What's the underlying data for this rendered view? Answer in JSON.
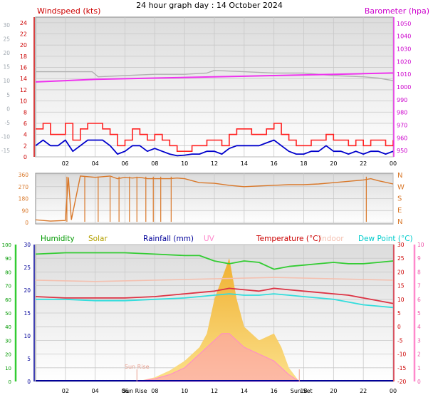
{
  "title": "24 hour graph day : 14 October 2024",
  "colors": {
    "windspeed": "#cc0000",
    "gust": "#ff2020",
    "wind_avg": "#0000cc",
    "barometer": "#ee33ee",
    "barometer_label": "#cc00cc",
    "baro_old": "#b0b0b0",
    "direction": "#d9782a",
    "humidity": "#33cc33",
    "humidity_label": "#009900",
    "solar": "#f5c242",
    "solar_label": "#b3a000",
    "rainfall": "#000099",
    "uv": "#ff88cc",
    "temperature": "#dd3344",
    "temperature_label": "#cc0000",
    "indoor": "#f4c0b0",
    "dewpoint": "#33dddd",
    "dewpoint_label": "#00cccc",
    "left_axis_grey": "#a0a8b0",
    "sun_marker": "#e8a090"
  },
  "chart_data": [
    {
      "type": "line",
      "panel": "wind-barometer",
      "title": "24 hour graph day : 14 October 2024",
      "xlabel": "",
      "x_ticks": [
        "02",
        "04",
        "06",
        "08",
        "10",
        "12",
        "14",
        "16",
        "18",
        "20",
        "22",
        "00"
      ],
      "y_left_label": "Windspeed (kts)",
      "y_left_ticks": [
        0,
        2,
        4,
        6,
        8,
        10,
        12,
        14,
        16,
        18,
        20,
        22,
        24
      ],
      "ylim_left": [
        0,
        25
      ],
      "y_far_left_ticks": [
        "30",
        "25",
        "20",
        "15",
        "10",
        "5",
        "0",
        "-5",
        "-10",
        "-15"
      ],
      "y_right_label": "Barometer (hpa)",
      "y_right_ticks": [
        950,
        960,
        970,
        980,
        990,
        1000,
        1010,
        1020,
        1030,
        1040,
        1050
      ],
      "ylim_right": [
        945,
        1055
      ],
      "series": [
        {
          "id": "gust",
          "x": [
            0,
            0.5,
            1,
            1.5,
            2,
            2.5,
            3,
            3.5,
            4,
            4.5,
            5,
            5.5,
            6,
            6.5,
            7,
            7.5,
            8,
            8.5,
            9,
            9.5,
            10,
            10.5,
            11,
            11.5,
            12,
            12.5,
            13,
            13.5,
            14,
            14.5,
            15,
            15.5,
            16,
            16.5,
            17,
            17.5,
            18,
            18.5,
            19,
            19.5,
            20,
            20.5,
            21,
            21.5,
            22,
            22.5,
            23,
            23.5,
            24
          ],
          "values": [
            5,
            6,
            4,
            4,
            6,
            3,
            5,
            6,
            6,
            5,
            4,
            2,
            3,
            5,
            4,
            3,
            4,
            3,
            2,
            1,
            1,
            2,
            2,
            3,
            3,
            2,
            4,
            5,
            5,
            4,
            4,
            5,
            6,
            4,
            3,
            2,
            2,
            3,
            3,
            4,
            3,
            3,
            2,
            3,
            2,
            3,
            3,
            2,
            3
          ]
        },
        {
          "id": "wind_avg",
          "x": [
            0,
            0.5,
            1,
            1.5,
            2,
            2.5,
            3,
            3.5,
            4,
            4.5,
            5,
            5.5,
            6,
            6.5,
            7,
            7.5,
            8,
            8.5,
            9,
            9.5,
            10,
            10.5,
            11,
            11.5,
            12,
            12.5,
            13,
            13.5,
            14,
            14.5,
            15,
            15.5,
            16,
            16.5,
            17,
            17.5,
            18,
            18.5,
            19,
            19.5,
            20,
            20.5,
            21,
            21.5,
            22,
            22.5,
            23,
            23.5,
            24
          ],
          "values": [
            2,
            3,
            2,
            2,
            3,
            1,
            2,
            3,
            3,
            3,
            2,
            0.5,
            1,
            2,
            2,
            1,
            1.5,
            1,
            0.5,
            0.2,
            0.3,
            0.5,
            0.5,
            1,
            1,
            0.5,
            1.5,
            2,
            2,
            2,
            2,
            2.5,
            3,
            2,
            1,
            0.5,
            0.5,
            1,
            1,
            2,
            1,
            1,
            0.5,
            1,
            0.5,
            1,
            1,
            0.5,
            1
          ]
        },
        {
          "id": "barometer",
          "x": [
            0,
            2,
            4,
            6,
            8,
            10,
            12,
            14,
            16,
            18,
            20,
            22,
            24
          ],
          "values": [
            1004,
            1005,
            1006,
            1006.5,
            1007,
            1007.5,
            1008,
            1008.5,
            1009,
            1009.5,
            1010,
            1010.5,
            1011
          ]
        },
        {
          "id": "baro_old",
          "x": [
            0,
            2,
            3.8,
            4.2,
            6,
            8,
            10,
            11.5,
            12,
            14,
            16,
            18,
            20,
            22,
            23,
            24
          ],
          "values": [
            1012,
            1012,
            1012,
            1008,
            1009,
            1010,
            1010,
            1011,
            1013,
            1012,
            1011,
            1011,
            1009,
            1008,
            1007,
            1005
          ]
        }
      ]
    },
    {
      "type": "line",
      "panel": "wind-direction",
      "y_left_ticks": [
        0,
        90,
        180,
        270,
        360
      ],
      "ylim": [
        0,
        360
      ],
      "y_right_labels": [
        "N",
        "W",
        "S",
        "E",
        "N"
      ],
      "series": [
        {
          "id": "direction",
          "x": [
            0,
            1,
            2,
            2.2,
            2.4,
            3,
            4,
            4.5,
            5,
            5.5,
            6,
            6.5,
            7,
            7.5,
            8,
            9,
            9.5,
            10,
            11,
            12,
            13,
            14,
            15,
            16,
            17,
            18,
            19,
            20,
            21,
            22,
            22.5,
            23,
            24
          ],
          "values": [
            20,
            10,
            15,
            340,
            20,
            350,
            340,
            345,
            350,
            330,
            340,
            335,
            340,
            330,
            330,
            330,
            335,
            330,
            300,
            295,
            280,
            270,
            275,
            280,
            285,
            285,
            290,
            300,
            310,
            320,
            330,
            315,
            290
          ]
        }
      ]
    },
    {
      "type": "line",
      "panel": "temperature-humidity",
      "x_ticks": [
        "02",
        "04",
        "06",
        "08",
        "10",
        "12",
        "14",
        "16",
        "18",
        "20",
        "22",
        "00"
      ],
      "markers": {
        "sunrise_label": "Sun Rise",
        "sunset_label": "Sun Set",
        "sunrise_marker_label": "Sun Rise",
        "sunrise_hour": 6.8,
        "sunset_hour": 17.7
      },
      "legend": [
        "Humidity",
        "Solar",
        "Rainfall (mm)",
        "UV",
        "Temperature (°C)",
        "Indoor",
        "Dew Point (°C)"
      ],
      "y_left_humidity_ticks": [
        0,
        10,
        20,
        30,
        40,
        50,
        60,
        70,
        80,
        90,
        100
      ],
      "y_left_rain_ticks": [
        0,
        5,
        10,
        15,
        20,
        25,
        30
      ],
      "y_right_ticks": [
        -20,
        -15,
        -10,
        -5,
        0,
        5,
        10,
        15,
        20,
        25,
        30
      ],
      "y_far_right_ticks": [
        0,
        1,
        2,
        3,
        4,
        5,
        6,
        7,
        8,
        9,
        10
      ],
      "ylim_right": [
        -20,
        30
      ],
      "series": [
        {
          "id": "humidity",
          "x": [
            0,
            2,
            4,
            6,
            8,
            10,
            11,
            12,
            13,
            14,
            15,
            16,
            17,
            18,
            19,
            20,
            21,
            22,
            23,
            24
          ],
          "values": [
            93,
            94,
            94,
            94,
            93,
            92,
            92,
            88,
            86,
            88,
            87,
            82,
            84,
            85,
            86,
            87,
            86,
            86,
            87,
            88
          ]
        },
        {
          "id": "temperature",
          "x": [
            0,
            2,
            4,
            6,
            8,
            10,
            11,
            12,
            13,
            14,
            15,
            16,
            17,
            18,
            19,
            20,
            21,
            22,
            23,
            24
          ],
          "values": [
            11,
            10.5,
            10.5,
            10.5,
            11,
            12,
            12.5,
            13,
            14,
            13.5,
            13,
            14,
            13.5,
            13,
            12.5,
            12,
            11.5,
            10.5,
            9.5,
            8.5
          ]
        },
        {
          "id": "dewpoint",
          "x": [
            0,
            2,
            4,
            6,
            8,
            10,
            11,
            12,
            13,
            14,
            15,
            16,
            17,
            18,
            19,
            20,
            21,
            22,
            23,
            24
          ],
          "values": [
            10,
            10,
            9.5,
            9.5,
            10,
            10.5,
            11,
            11.5,
            12,
            11.5,
            11.5,
            12,
            11.5,
            11,
            10.5,
            10,
            9,
            8,
            7.5,
            7
          ]
        },
        {
          "id": "indoor",
          "x": [
            0,
            4,
            8,
            12,
            16,
            20,
            24
          ],
          "values": [
            17,
            16.5,
            17,
            17.5,
            18,
            17.5,
            17
          ]
        },
        {
          "id": "solar",
          "x": [
            6.8,
            8,
            9,
            10,
            11,
            11.5,
            12,
            12.5,
            13,
            13.5,
            14,
            15,
            16,
            16.5,
            17,
            17.7
          ],
          "values": [
            0,
            0.3,
            0.8,
            1.5,
            2.5,
            3.5,
            6,
            7.5,
            9,
            6,
            4,
            3,
            3.5,
            2.5,
            1,
            0
          ]
        },
        {
          "id": "uv",
          "x": [
            6.8,
            8,
            9,
            10,
            11,
            12,
            12.5,
            13,
            14,
            15,
            16,
            17,
            17.7
          ],
          "values": [
            0,
            0.2,
            0.5,
            1,
            2,
            3,
            3.5,
            3.5,
            2.5,
            2,
            1.5,
            0.5,
            0
          ]
        },
        {
          "id": "rainfall",
          "x": [
            0,
            24
          ],
          "values": [
            0,
            0
          ]
        }
      ]
    }
  ]
}
